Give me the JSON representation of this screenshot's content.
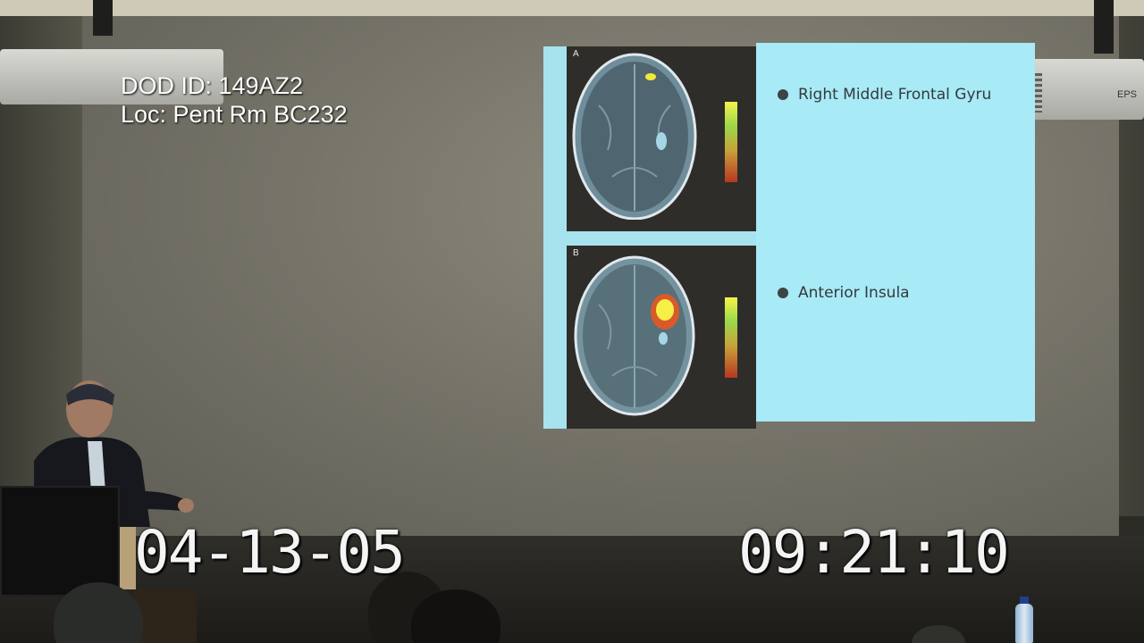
{
  "overlay": {
    "dod_id": "DOD ID: 149AZ2",
    "location": "Loc: Pent Rm BC232",
    "date": "04-13-05",
    "time": "09:21:10"
  },
  "slide": {
    "panel_a_label": "A",
    "panel_b_label": "B",
    "bullets": [
      {
        "text": "Right Middle Frontal Gyru"
      },
      {
        "text": "Anterior Insula"
      }
    ],
    "colors": {
      "slide_background": "#a8eaf6",
      "panel_background": "#2e2d2a",
      "bullet_dot": "#3e4348"
    }
  },
  "projector": {
    "brand_text": "EPS"
  },
  "icons": [
    "brain-scan-image",
    "colorbar-scale",
    "ceiling-projector",
    "water-bottle"
  ]
}
